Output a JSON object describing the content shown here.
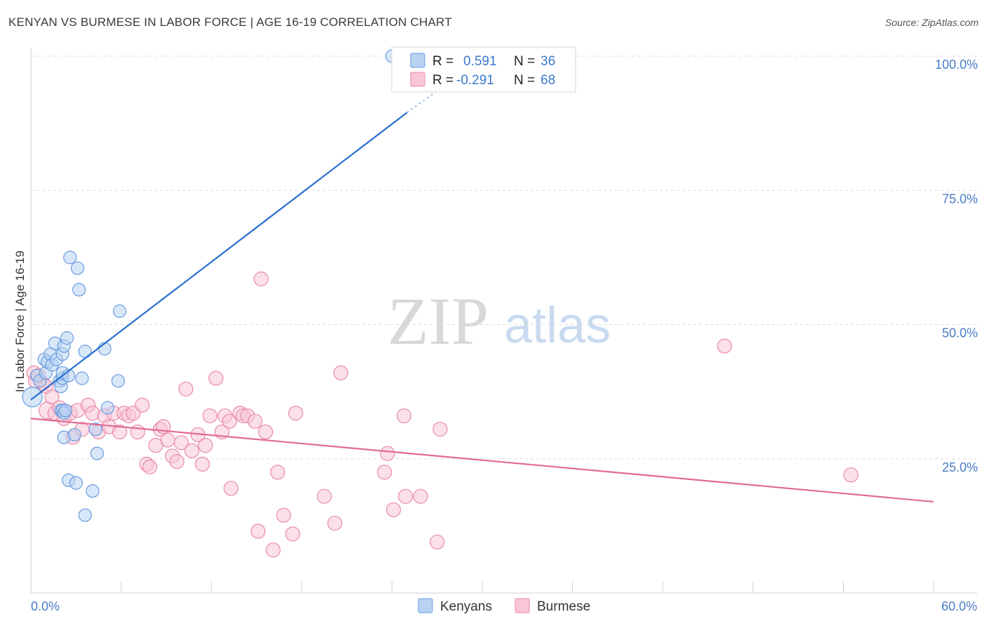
{
  "title": "KENYAN VS BURMESE IN LABOR FORCE | AGE 16-19 CORRELATION CHART",
  "source": "Source: ZipAtlas.com",
  "watermark": {
    "zip": "ZIP",
    "atlas": "atlas"
  },
  "colors": {
    "kenyan_fill": "#b8d3f2",
    "kenyan_stroke": "#6a9be0",
    "kenyan_line": "#2a6fd0",
    "burmese_fill": "#f8c6d6",
    "burmese_stroke": "#e98aab",
    "burmese_line": "#e06a95",
    "grid": "#dcdcdc",
    "axis_tick": "#4a7cc7"
  },
  "legend": {
    "kenyan": {
      "r_label": "R =",
      "r_value": "0.591",
      "n_label": "N =",
      "n_value": "36"
    },
    "burmese": {
      "r_label": "R =",
      "r_value": "-0.291",
      "n_label": "N =",
      "n_value": "68"
    }
  },
  "bottom_legend": {
    "kenyan": "Kenyans",
    "burmese": "Burmese"
  },
  "chart_data": {
    "type": "scatter",
    "title": "KENYAN VS BURMESE IN LABOR FORCE | AGE 16-19 CORRELATION CHART",
    "xlabel": "",
    "ylabel": "In Labor Force | Age 16-19",
    "xlim": [
      0,
      60
    ],
    "ylim": [
      0,
      100
    ],
    "x_tick_labels": [
      "0.0%",
      "60.0%"
    ],
    "y_ticks": [
      25,
      50,
      75,
      100
    ],
    "y_tick_labels": [
      "25.0%",
      "50.0%",
      "75.0%",
      "100.0%"
    ],
    "series": [
      {
        "name": "Kenyans",
        "r": 0.591,
        "n": 36,
        "trend": {
          "x0": 0,
          "y0": 36.0,
          "x1": 25.0,
          "y1": 89.5,
          "dash_to_x": 27.5,
          "dash_to_y": 94.5
        },
        "points": [
          [
            0.1,
            36.5,
            14
          ],
          [
            0.4,
            40.5,
            9
          ],
          [
            0.6,
            39.5,
            9
          ],
          [
            0.9,
            43.5,
            9
          ],
          [
            1.0,
            41.0,
            9
          ],
          [
            1.1,
            43.0,
            9
          ],
          [
            1.3,
            44.5,
            9
          ],
          [
            1.4,
            42.5,
            9
          ],
          [
            1.6,
            46.5,
            9
          ],
          [
            1.7,
            43.5,
            9
          ],
          [
            1.9,
            39.5,
            9
          ],
          [
            2.0,
            38.5,
            9
          ],
          [
            2.1,
            44.5,
            9
          ],
          [
            2.2,
            29.0,
            9
          ],
          [
            2.0,
            34.0,
            9
          ],
          [
            2.1,
            34.0,
            9
          ],
          [
            2.2,
            33.5,
            9
          ],
          [
            2.3,
            34.0,
            9
          ],
          [
            2.1,
            40.0,
            9
          ],
          [
            2.1,
            41.0,
            9
          ],
          [
            2.2,
            46.0,
            9
          ],
          [
            2.4,
            47.5,
            9
          ],
          [
            2.5,
            40.5,
            9
          ],
          [
            2.5,
            21.0,
            9
          ],
          [
            2.6,
            62.5,
            9
          ],
          [
            2.9,
            29.5,
            9
          ],
          [
            3.0,
            20.5,
            9
          ],
          [
            3.1,
            60.5,
            9
          ],
          [
            3.2,
            56.5,
            9
          ],
          [
            3.4,
            40.0,
            9
          ],
          [
            3.6,
            45.0,
            9
          ],
          [
            3.6,
            14.5,
            9
          ],
          [
            4.1,
            19.0,
            9
          ],
          [
            4.3,
            30.5,
            9
          ],
          [
            4.4,
            26.0,
            9
          ],
          [
            4.9,
            45.5,
            9
          ],
          [
            5.1,
            34.5,
            9
          ],
          [
            5.8,
            39.5,
            9
          ],
          [
            5.9,
            52.5,
            9
          ],
          [
            24.0,
            100.0,
            9
          ]
        ]
      },
      {
        "name": "Burmese",
        "r": -0.291,
        "n": 68,
        "trend": {
          "x0": 0,
          "y0": 32.5,
          "x1": 60,
          "y1": 17.0
        },
        "points": [
          [
            0.2,
            41.0,
            10
          ],
          [
            0.3,
            39.5,
            10
          ],
          [
            0.5,
            40.5,
            10
          ],
          [
            0.8,
            39.0,
            10
          ],
          [
            1.0,
            38.5,
            10
          ],
          [
            1.1,
            34.0,
            12
          ],
          [
            1.4,
            36.5,
            10
          ],
          [
            1.6,
            33.5,
            10
          ],
          [
            1.9,
            34.5,
            10
          ],
          [
            2.2,
            32.5,
            10
          ],
          [
            2.6,
            33.5,
            10
          ],
          [
            2.8,
            29.0,
            10
          ],
          [
            3.1,
            34.0,
            10
          ],
          [
            3.4,
            30.5,
            10
          ],
          [
            3.8,
            35.0,
            10
          ],
          [
            4.1,
            33.5,
            10
          ],
          [
            4.5,
            30.0,
            10
          ],
          [
            4.9,
            33.0,
            10
          ],
          [
            5.2,
            31.0,
            10
          ],
          [
            5.5,
            33.5,
            10
          ],
          [
            5.9,
            30.0,
            10
          ],
          [
            6.2,
            33.5,
            10
          ],
          [
            6.5,
            33.0,
            10
          ],
          [
            6.8,
            33.5,
            10
          ],
          [
            7.1,
            30.0,
            10
          ],
          [
            7.4,
            35.0,
            10
          ],
          [
            7.7,
            24.0,
            10
          ],
          [
            7.9,
            23.5,
            10
          ],
          [
            8.3,
            27.5,
            10
          ],
          [
            8.6,
            30.5,
            10
          ],
          [
            8.8,
            31.0,
            10
          ],
          [
            9.1,
            28.5,
            10
          ],
          [
            9.4,
            25.5,
            10
          ],
          [
            9.7,
            24.5,
            10
          ],
          [
            10.0,
            28.0,
            10
          ],
          [
            10.3,
            38.0,
            10
          ],
          [
            10.7,
            26.5,
            10
          ],
          [
            11.1,
            29.5,
            10
          ],
          [
            11.4,
            24.0,
            10
          ],
          [
            11.6,
            27.5,
            10
          ],
          [
            11.9,
            33.0,
            10
          ],
          [
            12.3,
            40.0,
            10
          ],
          [
            12.7,
            30.0,
            10
          ],
          [
            12.9,
            33.0,
            10
          ],
          [
            13.2,
            32.0,
            10
          ],
          [
            13.3,
            19.5,
            10
          ],
          [
            13.9,
            33.5,
            10
          ],
          [
            14.1,
            33.0,
            10
          ],
          [
            14.4,
            33.0,
            10
          ],
          [
            14.9,
            32.0,
            10
          ],
          [
            15.1,
            11.5,
            10
          ],
          [
            15.3,
            58.5,
            10
          ],
          [
            15.6,
            30.0,
            10
          ],
          [
            16.1,
            8.0,
            10
          ],
          [
            16.4,
            22.5,
            10
          ],
          [
            16.8,
            14.5,
            10
          ],
          [
            17.4,
            11.0,
            10
          ],
          [
            17.6,
            33.5,
            10
          ],
          [
            19.5,
            18.0,
            10
          ],
          [
            20.2,
            13.0,
            10
          ],
          [
            20.6,
            41.0,
            10
          ],
          [
            23.5,
            22.5,
            10
          ],
          [
            23.7,
            26.0,
            10
          ],
          [
            24.1,
            15.5,
            10
          ],
          [
            24.8,
            33.0,
            10
          ],
          [
            24.9,
            18.0,
            10
          ],
          [
            25.9,
            18.0,
            10
          ],
          [
            27.0,
            9.5,
            10
          ],
          [
            27.2,
            30.5,
            10
          ],
          [
            46.1,
            46.0,
            10
          ],
          [
            54.5,
            22.0,
            10
          ]
        ]
      }
    ]
  }
}
